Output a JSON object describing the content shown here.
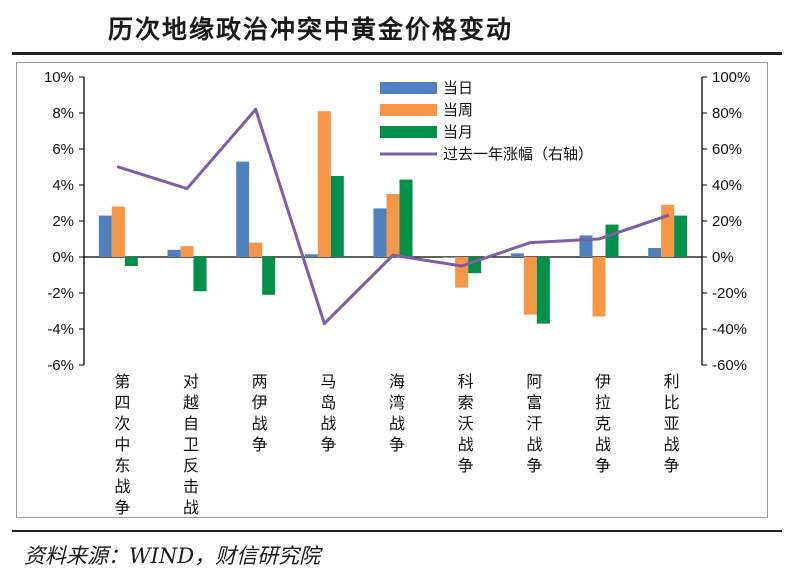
{
  "header": {
    "title": "历次地缘政治冲突中黄金价格变动"
  },
  "footer": {
    "source": "资料来源：WIND，财信研究院"
  },
  "colors": {
    "day": "#4f81bd",
    "week": "#f79646",
    "month": "#00904a",
    "line": "#7e5ea8"
  },
  "chart_data": {
    "type": "bar",
    "categories": [
      "第四次中东战争",
      "对越自卫反击战",
      "两伊战争",
      "马岛战争",
      "海湾战争",
      "科索沃战争",
      "阿富汗战争",
      "伊拉克战争",
      "利比亚战争"
    ],
    "series": [
      {
        "name": "当日",
        "type": "bar",
        "axis": "left",
        "values": [
          2.3,
          0.4,
          5.3,
          0.15,
          2.7,
          0.0,
          0.2,
          1.2,
          0.5
        ]
      },
      {
        "name": "当周",
        "type": "bar",
        "axis": "left",
        "values": [
          2.8,
          0.6,
          0.8,
          8.1,
          3.5,
          -1.7,
          -3.2,
          -3.3,
          2.9
        ]
      },
      {
        "name": "当月",
        "type": "bar",
        "axis": "left",
        "values": [
          -0.5,
          -1.9,
          -2.1,
          4.5,
          4.3,
          -0.9,
          -3.7,
          1.8,
          2.3
        ]
      },
      {
        "name": "过去一年涨幅（右轴）",
        "type": "line",
        "axis": "right",
        "values": [
          50,
          38,
          82,
          -37,
          1,
          -5,
          8,
          10,
          23
        ]
      }
    ],
    "y_left": {
      "min": -6,
      "max": 10,
      "step": 2,
      "ticks": [
        "-6%",
        "-4%",
        "-2%",
        "0%",
        "2%",
        "4%",
        "6%",
        "8%",
        "10%"
      ]
    },
    "y_right": {
      "min": -60,
      "max": 100,
      "step": 20,
      "ticks": [
        "-60%",
        "-40%",
        "-20%",
        "0%",
        "20%",
        "40%",
        "60%",
        "80%",
        "100%"
      ]
    },
    "legend_position": "top-center",
    "grid": false
  }
}
